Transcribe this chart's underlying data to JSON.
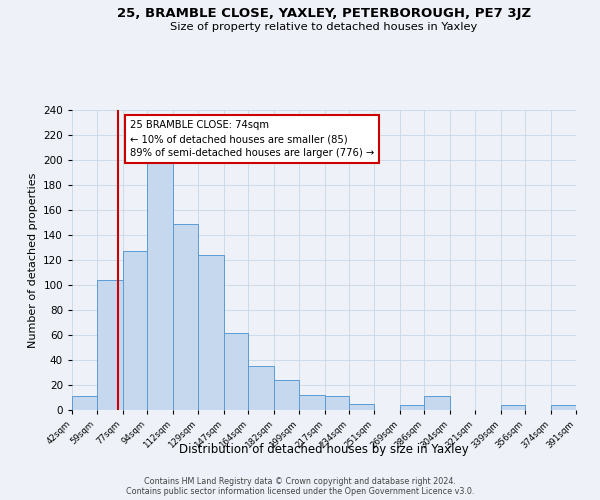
{
  "title": "25, BRAMBLE CLOSE, YAXLEY, PETERBOROUGH, PE7 3JZ",
  "subtitle": "Size of property relative to detached houses in Yaxley",
  "xlabel": "Distribution of detached houses by size in Yaxley",
  "ylabel": "Number of detached properties",
  "footnote1": "Contains HM Land Registry data © Crown copyright and database right 2024.",
  "footnote2": "Contains public sector information licensed under the Open Government Licence v3.0.",
  "bar_edges": [
    42,
    59,
    77,
    94,
    112,
    129,
    147,
    164,
    182,
    199,
    217,
    234,
    251,
    269,
    286,
    304,
    321,
    339,
    356,
    374,
    391
  ],
  "bar_heights": [
    11,
    104,
    127,
    198,
    149,
    124,
    62,
    35,
    24,
    12,
    11,
    5,
    0,
    4,
    11,
    0,
    0,
    4,
    0,
    4
  ],
  "bar_color": "#c5d8ed",
  "bar_edge_color": "#5b9bd5",
  "ref_line_x": 74,
  "ref_line_color": "#cc0000",
  "annotation_line1": "25 BRAMBLE CLOSE: 74sqm",
  "annotation_line2": "← 10% of detached houses are smaller (85)",
  "annotation_line3": "89% of semi-detached houses are larger (776) →",
  "annotation_box_color": "#ffffff",
  "annotation_box_edge": "#cc0000",
  "ylim": [
    0,
    240
  ],
  "yticks": [
    0,
    20,
    40,
    60,
    80,
    100,
    120,
    140,
    160,
    180,
    200,
    220,
    240
  ],
  "grid_color": "#c8d8e8",
  "bg_color": "#eef2f8"
}
